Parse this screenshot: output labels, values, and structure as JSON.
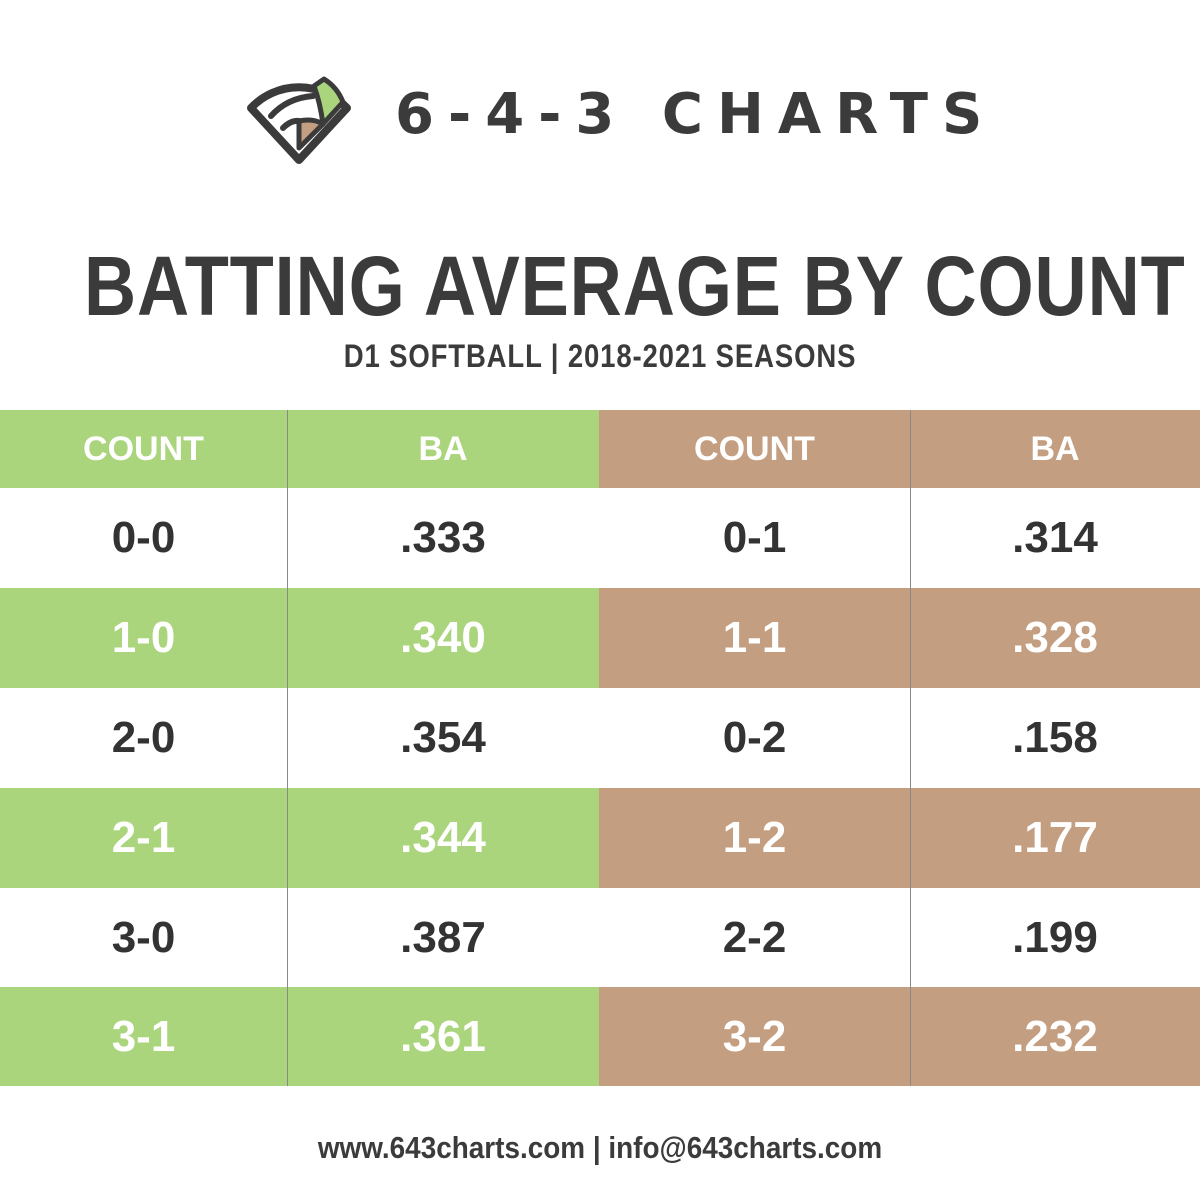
{
  "brand": {
    "name": "6-4-3 CHARTS"
  },
  "colors": {
    "green": "#aad57c",
    "tan": "#c49e81",
    "text": "#3b3b3b",
    "divider": "#8a8a8a"
  },
  "chart_data": {
    "type": "table",
    "title": "BATTING AVERAGE BY COUNT",
    "subtitle": "D1 SOFTBALL | 2018-2021 SEASONS",
    "columns": [
      "COUNT",
      "BA",
      "COUNT",
      "BA"
    ],
    "rows": [
      [
        "0-0",
        ".333",
        "0-1",
        ".314"
      ],
      [
        "1-0",
        ".340",
        "1-1",
        ".328"
      ],
      [
        "2-0",
        ".354",
        "0-2",
        ".158"
      ],
      [
        "2-1",
        ".344",
        "1-2",
        ".177"
      ],
      [
        "3-0",
        ".387",
        "2-2",
        ".199"
      ],
      [
        "3-1",
        ".361",
        "3-2",
        ".232"
      ]
    ]
  },
  "footer": {
    "text": "www.643charts.com | info@643charts.com"
  }
}
